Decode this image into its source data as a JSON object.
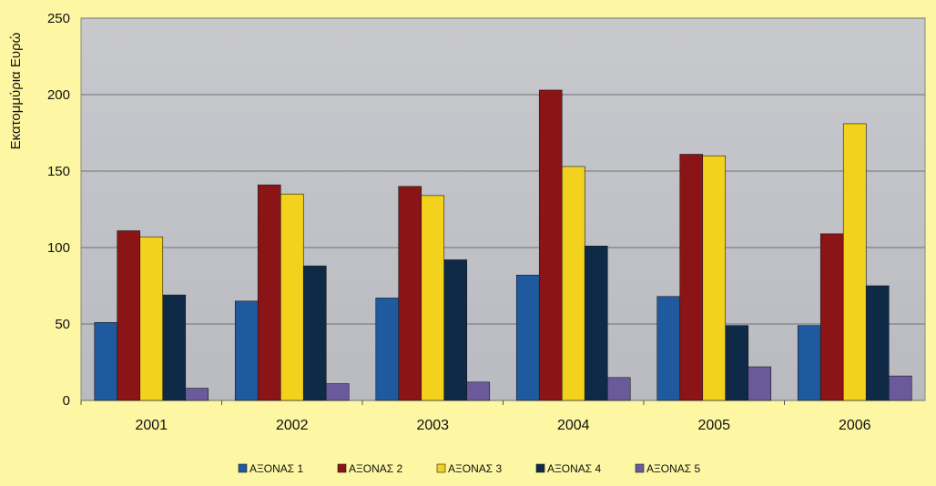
{
  "chart_data": {
    "type": "bar",
    "ylabel": "Εκατομμύρια Ευρώ",
    "xlabel": "",
    "ylim": [
      0,
      250
    ],
    "y_ticks": [
      0,
      50,
      100,
      150,
      200,
      250
    ],
    "categories": [
      "2001",
      "2002",
      "2003",
      "2004",
      "2005",
      "2006"
    ],
    "series": [
      {
        "name": "ΑΞΟΝΑΣ  1",
        "color": "#1f5a9e",
        "values": [
          51,
          65,
          67,
          82,
          68,
          49
        ]
      },
      {
        "name": "ΑΞΟΝΑΣ  2",
        "color": "#8a1416",
        "values": [
          111,
          141,
          140,
          203,
          161,
          109
        ]
      },
      {
        "name": "ΑΞΟΝΑΣ  3",
        "color": "#f2d21c",
        "values": [
          107,
          135,
          134,
          153,
          160,
          181
        ]
      },
      {
        "name": "ΑΞΟΝΑΣ  4",
        "color": "#0f2a47",
        "values": [
          69,
          88,
          92,
          101,
          49,
          75
        ]
      },
      {
        "name": "ΑΞΟΝΑΣ  5",
        "color": "#6a5a9c",
        "values": [
          8,
          11,
          12,
          15,
          22,
          16
        ]
      }
    ],
    "grid": true,
    "legend_position": "bottom"
  }
}
